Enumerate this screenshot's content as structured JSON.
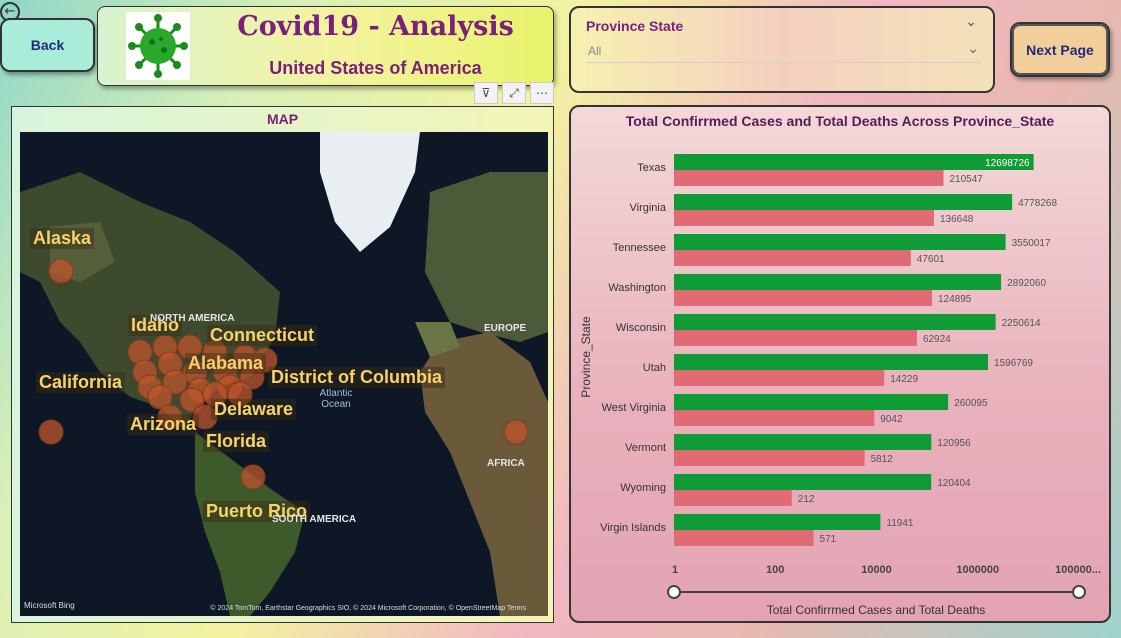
{
  "nav": {
    "back_label": "Back",
    "next_label": "Next Page"
  },
  "header": {
    "title": "Covid19 - Analysis",
    "subtitle": "United States of America"
  },
  "slicer": {
    "title": "Province State",
    "selected": "All"
  },
  "map": {
    "title": "MAP",
    "state_labels": [
      "Alaska",
      "Idaho",
      "Connecticut",
      "Alabama",
      "California",
      "District of Columbia",
      "Delaware",
      "Arizona",
      "Florida",
      "Puerto Rico"
    ],
    "geo_labels": {
      "north_america": "NORTH AMERICA",
      "europe": "EUROPE",
      "africa": "AFRICA",
      "south_america": "SOUTH AMERICA",
      "ocean": "Atlantic Ocean"
    },
    "attribution": "Microsoft Bing",
    "copyright": "© 2024 TomTom, Earthstar Geographics SIO, © 2024 Microsoft Corporation, © OpenStreetMap  Terms"
  },
  "chart_data": {
    "type": "bar",
    "title": "Total Confirrmed Cases and Total Deaths Across Province_State",
    "ylabel": "Province_State",
    "xlabel": "Total Confirrmed Cases and Total Deaths",
    "x_scale": "log",
    "x_ticks": [
      "1",
      "100",
      "10000",
      "1000000",
      "100000..."
    ],
    "categories": [
      "Texas",
      "Virginia",
      "Tennessee",
      "Washington",
      "Wisconsin",
      "Utah",
      "West Virginia",
      "Vermont",
      "Wyoming",
      "Virgin Islands"
    ],
    "series": [
      {
        "values": [
          12698726,
          4778268,
          3550017,
          2892060,
          2250614,
          1596769,
          260095,
          120956,
          120404,
          11941
        ],
        "color": "#0f9b35"
      },
      {
        "values": [
          210547,
          136648,
          47601,
          124895,
          62924,
          14229,
          9042,
          5812,
          212,
          571
        ],
        "color": "#e06b74"
      }
    ]
  },
  "colors": {
    "accent": "#7a1f7a",
    "green_bar": "#0f9b35",
    "red_bar": "#e06b74"
  }
}
